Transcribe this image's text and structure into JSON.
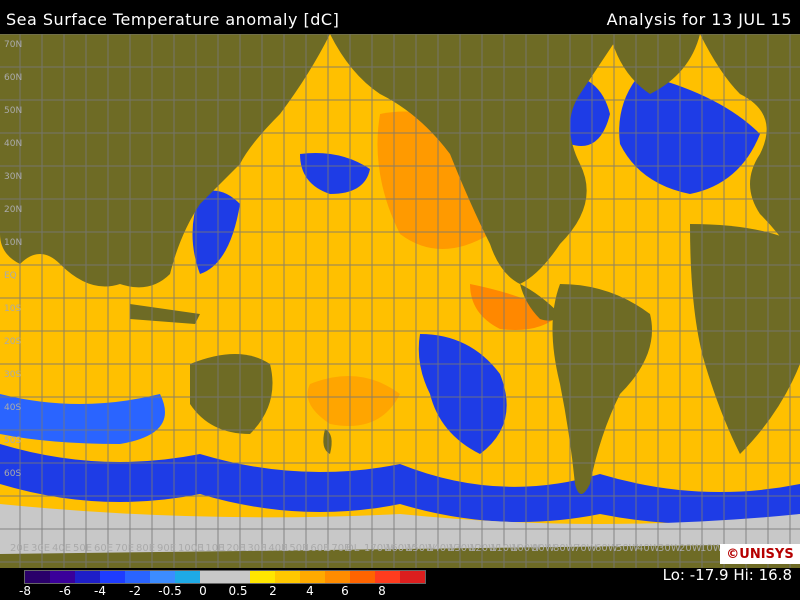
{
  "header": {
    "title": "Sea Surface Temperature anomaly [dC]",
    "analysis": "Analysis for 13 JUL 15"
  },
  "map": {
    "lat_labels": [
      "70N",
      "60N",
      "50N",
      "40N",
      "30N",
      "20N",
      "10N",
      "EQ",
      "10S",
      "20S",
      "30S",
      "40S",
      "50S",
      "60S"
    ],
    "lon_labels": [
      "20E",
      "30E",
      "40E",
      "50E",
      "60E",
      "70E",
      "80E",
      "90E",
      "100E",
      "110E",
      "120E",
      "130E",
      "140E",
      "150E",
      "160E",
      "170E",
      "DL",
      "170W",
      "160W",
      "150W",
      "140W",
      "130W",
      "120W",
      "110W",
      "100W",
      "90W",
      "80W",
      "70W",
      "60W",
      "50W",
      "40W",
      "30W",
      "20W",
      "10W"
    ]
  },
  "logo": "©UNISYS",
  "legend": {
    "tick_labels": [
      "-8",
      "-6",
      "-4",
      "-2",
      "-0.5",
      "0",
      "0.5",
      "2",
      "4",
      "6",
      "8"
    ],
    "colors": [
      "#2a006a",
      "#3a009a",
      "#1e1ec8",
      "#1e3cff",
      "#2a64ff",
      "#3c8cff",
      "#1eaae6",
      "#c8c8c8",
      "#c8c8c8",
      "#ffe600",
      "#ffc800",
      "#ffaa00",
      "#ff8c00",
      "#ff6400",
      "#ff3c1e",
      "#dc1e1e"
    ]
  },
  "stats": {
    "lo": "-17.9",
    "hi": "16.8",
    "text": "Lo: -17.9 Hi: 16.8"
  },
  "colors": {
    "land": "#6e6b25",
    "ice": "#c8c8c8",
    "warm": "#ffc200",
    "cool": "#1e3ce6",
    "grid": "#777777"
  }
}
